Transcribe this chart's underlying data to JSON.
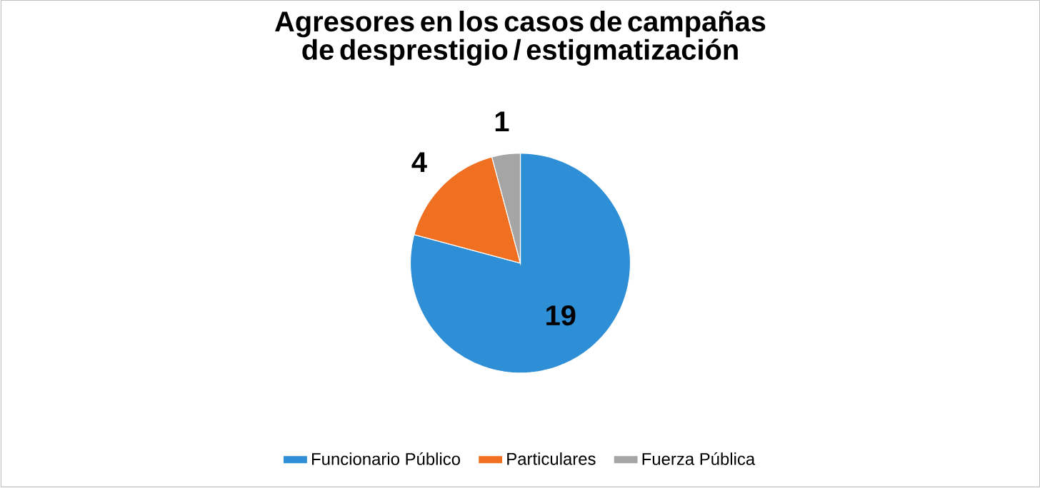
{
  "chart_data": {
    "type": "pie",
    "title": "Agresores en los casos de campañas de desprestigio / estigmatización",
    "categories": [
      "Funcionario Público",
      "Particulares",
      "Fuerza Pública"
    ],
    "values": [
      19,
      4,
      1
    ],
    "colors": [
      "#2e8fd6",
      "#f07022",
      "#a5a5a5"
    ],
    "data_labels": true,
    "legend": "bottom"
  }
}
